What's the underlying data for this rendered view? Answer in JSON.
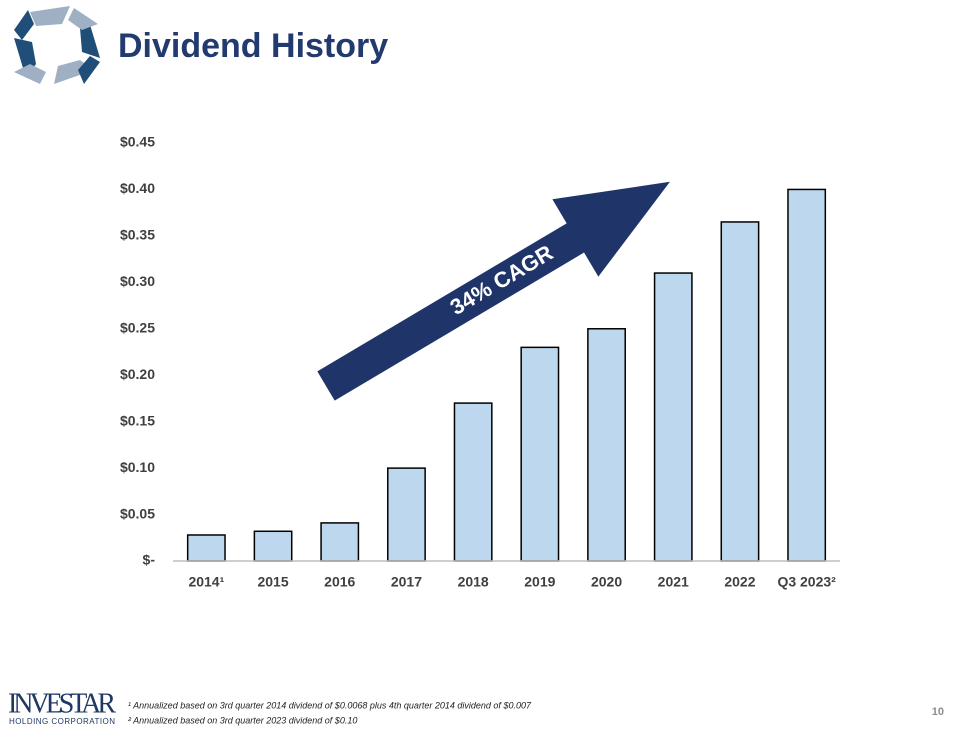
{
  "chart_data": {
    "type": "bar",
    "title": "Dividend History",
    "categories": [
      "2014¹",
      "2015",
      "2016",
      "2017",
      "2018",
      "2019",
      "2020",
      "2021",
      "2022",
      "Q3 2023²"
    ],
    "values": [
      0.028,
      0.032,
      0.041,
      0.1,
      0.17,
      0.23,
      0.25,
      0.31,
      0.365,
      0.4
    ],
    "color": "#bdd7ee",
    "ylim": [
      0,
      0.45
    ],
    "yticks": [
      {
        "value": 0,
        "label": "$-"
      },
      {
        "value": 0.05,
        "label": "$0.05"
      },
      {
        "value": 0.1,
        "label": "$0.10"
      },
      {
        "value": 0.15,
        "label": "$0.15"
      },
      {
        "value": 0.2,
        "label": "$0.20"
      },
      {
        "value": 0.25,
        "label": "$0.25"
      },
      {
        "value": 0.3,
        "label": "$0.30"
      },
      {
        "value": 0.35,
        "label": "$0.35"
      },
      {
        "value": 0.4,
        "label": "$0.40"
      },
      {
        "value": 0.45,
        "label": "$0.45"
      }
    ],
    "grid": false,
    "annotation": "34% CAGR",
    "footnotes": [
      "¹ Annualized based on 3rd quarter 2014 dividend of $0.0068 plus 4th quarter 2014 dividend of $0.007",
      "² Annualized based on 3rd quarter 2023 dividend of $0.10"
    ]
  },
  "footer": {
    "logo": "INVESTAR",
    "logo_subtitle": "HOLDING CORPORATION",
    "page_number": "10"
  }
}
